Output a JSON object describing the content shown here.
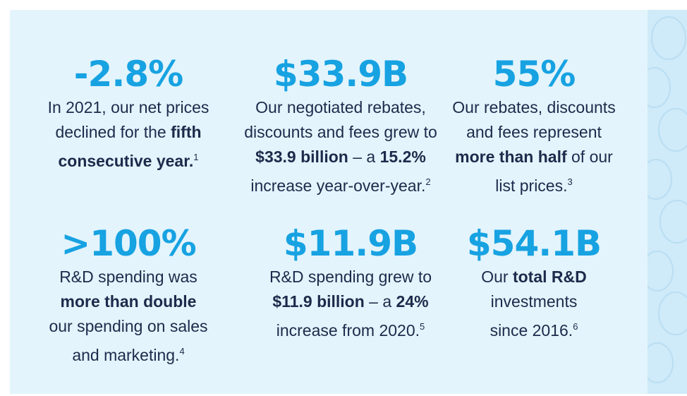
{
  "stats": [
    {
      "value": "-2.8%",
      "lines": [
        [
          {
            "text": "In 2021, our net prices"
          }
        ],
        [
          {
            "text": "declined for the "
          },
          {
            "text": "fifth",
            "bold": true
          }
        ],
        [
          {
            "text": "consecutive year.",
            "bold": true
          },
          {
            "text": "1",
            "sup": true
          }
        ]
      ]
    },
    {
      "value": "$33.9B",
      "lines": [
        [
          {
            "text": "Our negotiated rebates,"
          }
        ],
        [
          {
            "text": "discounts and fees grew to"
          }
        ],
        [
          {
            "text": "$33.9 billion",
            "bold": true
          },
          {
            "text": " – a "
          },
          {
            "text": "15.2%",
            "bold": true
          }
        ],
        [
          {
            "text": "increase year-over-year."
          },
          {
            "text": "2",
            "sup": true
          }
        ]
      ]
    },
    {
      "value": "55%",
      "lines": [
        [
          {
            "text": "Our rebates, discounts"
          }
        ],
        [
          {
            "text": "and fees represent"
          }
        ],
        [
          {
            "text": "more than half",
            "bold": true
          },
          {
            "text": " of our"
          }
        ],
        [
          {
            "text": "list prices."
          },
          {
            "text": "3",
            "sup": true
          }
        ]
      ]
    },
    {
      "value": ">100%",
      "lines": [
        [
          {
            "text": "R&D spending was"
          }
        ],
        [
          {
            "text": "more than double",
            "bold": true
          }
        ],
        [
          {
            "text": "our spending on sales"
          }
        ],
        [
          {
            "text": "and marketing."
          },
          {
            "text": "4",
            "sup": true
          }
        ]
      ]
    },
    {
      "value": "$11.9B",
      "lines": [
        [
          {
            "text": "R&D spending grew to"
          }
        ],
        [
          {
            "text": "$11.9 billion",
            "bold": true
          },
          {
            "text": " – a "
          },
          {
            "text": "24%",
            "bold": true
          }
        ],
        [
          {
            "text": "increase from 2020."
          },
          {
            "text": "5",
            "sup": true
          }
        ]
      ]
    },
    {
      "value": "$54.1B",
      "lines": [
        [
          {
            "text": "Our "
          },
          {
            "text": "total R&D",
            "bold": true
          }
        ],
        [
          {
            "text": "investments"
          }
        ],
        [
          {
            "text": "since 2016."
          },
          {
            "text": "6",
            "sup": true
          }
        ]
      ]
    }
  ]
}
